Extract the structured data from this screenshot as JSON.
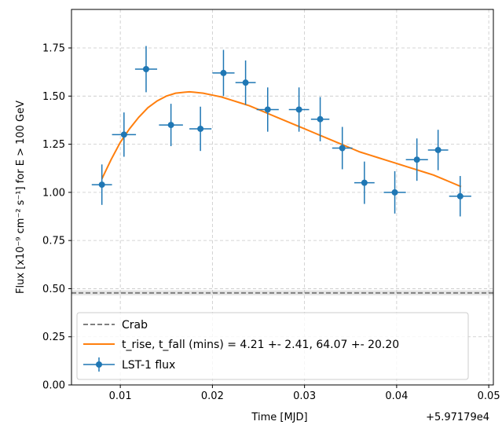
{
  "chart_data": {
    "type": "scatter",
    "xlabel": "Time [MJD]",
    "ylabel": "Flux [x10⁻⁹ cm⁻² s⁻¹] for E > 100 GeV",
    "x_offset_label": "+5.97179e4",
    "xlim": [
      0.0047,
      0.0505
    ],
    "ylim": [
      0.0,
      1.95
    ],
    "x_ticks": [
      0.01,
      0.02,
      0.03,
      0.04,
      0.05
    ],
    "x_tick_labels": [
      "0.01",
      "0.02",
      "0.03",
      "0.04",
      "0.05"
    ],
    "y_ticks": [
      0.0,
      0.25,
      0.5,
      0.75,
      1.0,
      1.25,
      1.5,
      1.75
    ],
    "y_tick_labels": [
      "0.00",
      "0.25",
      "0.50",
      "0.75",
      "1.00",
      "1.25",
      "1.50",
      "1.75"
    ],
    "grid": true,
    "legend_position": "lower-left",
    "legend": [
      {
        "label": "Crab",
        "style": "dashed",
        "color": "#808080"
      },
      {
        "label": "t_rise, t_fall (mins) = 4.21 +- 2.41, 64.07 +- 20.20",
        "style": "line",
        "color": "#ff7f0e"
      },
      {
        "label": "LST-1 flux",
        "style": "errorbar",
        "color": "#1f77b4"
      }
    ],
    "crab": {
      "value": 0.478,
      "band": [
        0.465,
        0.492
      ],
      "color": "#808080"
    },
    "series": [
      {
        "name": "LST-1 flux",
        "color": "#1f77b4",
        "x": [
          0.008,
          0.0104,
          0.0128,
          0.0155,
          0.0187,
          0.0212,
          0.0236,
          0.026,
          0.0294,
          0.0317,
          0.0341,
          0.0365,
          0.0398,
          0.0422,
          0.0445,
          0.0469
        ],
        "y": [
          1.04,
          1.3,
          1.64,
          1.35,
          1.33,
          1.62,
          1.57,
          1.43,
          1.43,
          1.38,
          1.23,
          1.05,
          1.0,
          1.17,
          1.22,
          0.98
        ],
        "xerr": [
          0.0011,
          0.0013,
          0.0012,
          0.0013,
          0.0012,
          0.0012,
          0.0011,
          0.0012,
          0.0011,
          0.001,
          0.0011,
          0.0011,
          0.0012,
          0.0012,
          0.0011,
          0.0012
        ],
        "yerr": [
          0.105,
          0.115,
          0.12,
          0.11,
          0.115,
          0.12,
          0.115,
          0.115,
          0.115,
          0.115,
          0.11,
          0.11,
          0.11,
          0.11,
          0.105,
          0.105
        ]
      },
      {
        "name": "t_rise, t_fall (mins) = 4.21 +- 2.41, 64.07 +- 20.20",
        "color": "#ff7f0e",
        "x": [
          0.008,
          0.009,
          0.01,
          0.011,
          0.012,
          0.013,
          0.014,
          0.015,
          0.016,
          0.017,
          0.0175,
          0.018,
          0.019,
          0.02,
          0.021,
          0.022,
          0.023,
          0.024,
          0.025,
          0.026,
          0.027,
          0.028,
          0.029,
          0.03,
          0.031,
          0.032,
          0.033,
          0.034,
          0.035,
          0.036,
          0.037,
          0.038,
          0.039,
          0.04,
          0.041,
          0.042,
          0.043,
          0.044,
          0.045,
          0.046,
          0.047
        ],
        "y": [
          1.07,
          1.17,
          1.26,
          1.33,
          1.39,
          1.44,
          1.475,
          1.5,
          1.515,
          1.52,
          1.522,
          1.52,
          1.515,
          1.505,
          1.495,
          1.48,
          1.465,
          1.45,
          1.43,
          1.41,
          1.39,
          1.37,
          1.35,
          1.33,
          1.31,
          1.29,
          1.27,
          1.25,
          1.23,
          1.21,
          1.195,
          1.18,
          1.165,
          1.15,
          1.135,
          1.12,
          1.105,
          1.09,
          1.07,
          1.05,
          1.03
        ]
      }
    ]
  }
}
